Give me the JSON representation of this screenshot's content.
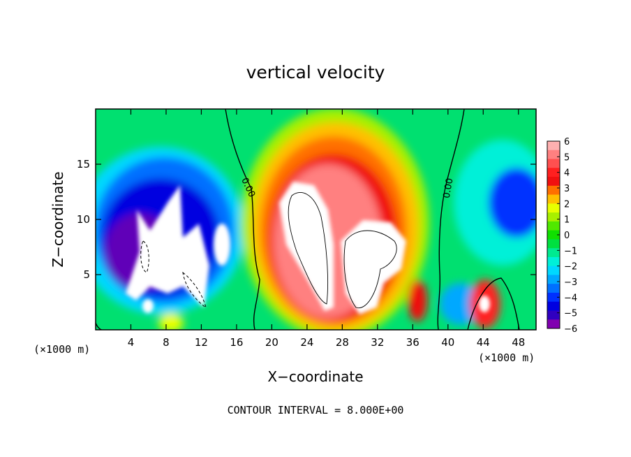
{
  "chart_data": {
    "type": "heatmap",
    "title": "vertical velocity",
    "xlabel": "X−coordinate",
    "ylabel": "Z−coordinate",
    "x_unit": "(×1000 m)",
    "footer": "CONTOUR INTERVAL = 8.000E+00",
    "xlim": [
      0,
      50
    ],
    "ylim": [
      0,
      20
    ],
    "x_ticks": [
      4,
      8,
      12,
      16,
      20,
      24,
      28,
      32,
      36,
      40,
      44,
      48
    ],
    "y_ticks": [
      5,
      10,
      15
    ],
    "contour_labels": [
      "0.00",
      "0.00"
    ],
    "colorbar": {
      "range": [
        -6,
        6
      ],
      "ticks": [
        "6",
        "5",
        "4",
        "3",
        "2",
        "1",
        "0",
        "−1",
        "−2",
        "−3",
        "−4",
        "−5",
        "−6"
      ],
      "colors": [
        "#ffb0b0",
        "#ff8080",
        "#ff5050",
        "#ff2020",
        "#f01010",
        "#ff7000",
        "#ffc000",
        "#e8ff00",
        "#a8f000",
        "#50e800",
        "#10e000",
        "#00e040",
        "#00ea90",
        "#00f0d8",
        "#00d8ff",
        "#00a8ff",
        "#0070ff",
        "#0030ff",
        "#0000e0",
        "#3000c0",
        "#8000b0"
      ]
    },
    "features": [
      {
        "kind": "downdraft",
        "x": [
          4,
          12
        ],
        "z": [
          2,
          13
        ],
        "min": -6
      },
      {
        "kind": "updraft",
        "x": [
          20,
          35
        ],
        "z": [
          0.5,
          17
        ],
        "max": 6
      },
      {
        "kind": "updraft",
        "x": [
          43,
          46
        ],
        "z": [
          0.5,
          4
        ],
        "max": 5
      },
      {
        "kind": "downdraft",
        "x": [
          44,
          50
        ],
        "z": [
          7,
          14
        ],
        "min": -4
      }
    ]
  }
}
